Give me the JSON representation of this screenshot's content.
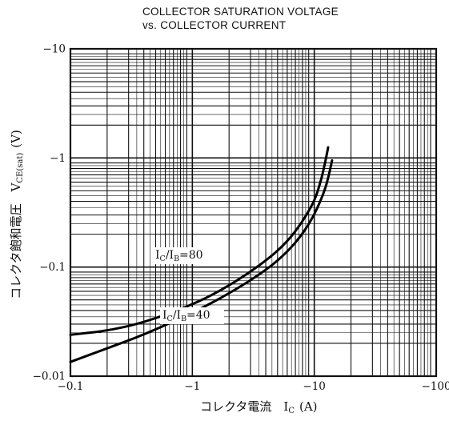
{
  "chart_data": {
    "type": "line",
    "title": "COLLECTOR SATURATION VOLTAGE",
    "subtitle": "vs. COLLECTOR CURRENT",
    "xlabel": "コレクタ電流　I",
    "xlabel_sub": "C",
    "xlabel_unit": "(A)",
    "ylabel": "コレクタ飽和電圧　V",
    "ylabel_sub": "CE(sat)",
    "ylabel_unit": "(V)",
    "x_scale": "log",
    "y_scale": "log",
    "xlim": [
      -0.1,
      -100
    ],
    "ylim": [
      -0.01,
      -10
    ],
    "grid": true,
    "x_ticks": [
      {
        "value": -0.1,
        "label": "−0.1"
      },
      {
        "value": -1,
        "label": "−1"
      },
      {
        "value": -10,
        "label": "−10"
      },
      {
        "value": -100,
        "label": "−100"
      }
    ],
    "y_ticks": [
      {
        "value": -0.01,
        "label": "−0.01"
      },
      {
        "value": -0.1,
        "label": "−0.1"
      },
      {
        "value": -1,
        "label": "−1"
      },
      {
        "value": -10,
        "label": "−10"
      }
    ],
    "series": [
      {
        "name": "IC/IB=80",
        "label": {
          "I": "I",
          "C": "C",
          "slash": "/I",
          "B": "B",
          "ratio": "=80"
        },
        "x": [
          -0.1,
          -0.2,
          -0.4,
          -1,
          -2,
          -4,
          -6,
          -8,
          -10,
          -11,
          -12,
          -13
        ],
        "y": [
          -0.024,
          -0.026,
          -0.031,
          -0.045,
          -0.067,
          -0.113,
          -0.17,
          -0.26,
          -0.4,
          -0.55,
          -0.8,
          -1.25
        ]
      },
      {
        "name": "IC/IB=40",
        "label": {
          "I": "I",
          "C": "C",
          "slash": "/I",
          "B": "B",
          "ratio": "=40"
        },
        "x": [
          -0.1,
          -0.2,
          -0.4,
          -1,
          -2,
          -4,
          -6,
          -8,
          -10,
          -12,
          -13,
          -14
        ],
        "y": [
          -0.0135,
          -0.018,
          -0.024,
          -0.038,
          -0.057,
          -0.093,
          -0.137,
          -0.2,
          -0.3,
          -0.48,
          -0.65,
          -0.95
        ]
      }
    ]
  }
}
